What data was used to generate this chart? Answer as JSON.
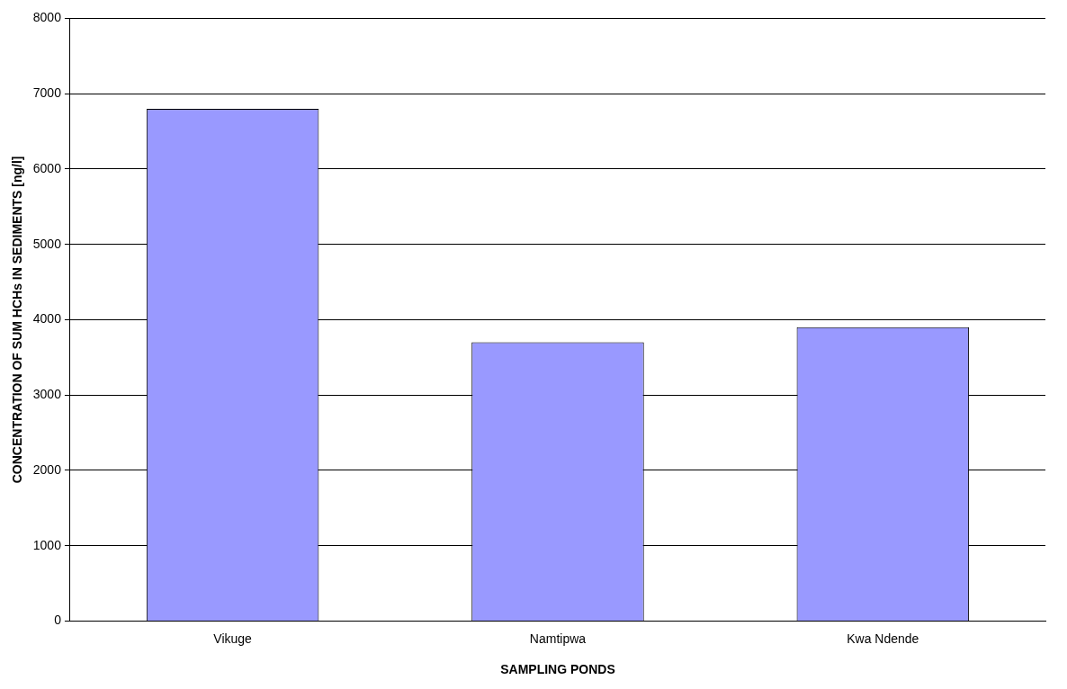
{
  "chart_data": {
    "type": "bar",
    "xlabel": "SAMPLING PONDS",
    "ylabel": "CONCENTRATION OF SUM HCHs IN SEDIMENTS [ng/l]",
    "categories": [
      "Vikuge",
      "Namtipwa",
      "Kwa Ndende"
    ],
    "values": [
      6800,
      3700,
      3900
    ],
    "color": "#9999ff",
    "ylim": [
      0,
      8000
    ],
    "yticks": [
      0,
      1000,
      2000,
      3000,
      4000,
      5000,
      6000,
      7000,
      8000
    ],
    "grid": "y",
    "legend": false
  }
}
